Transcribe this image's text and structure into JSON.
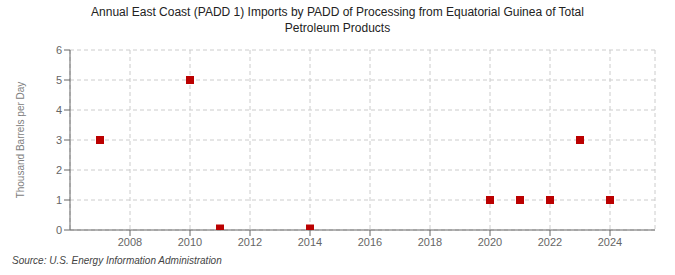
{
  "chart_data": {
    "type": "scatter",
    "title": "Annual East Coast (PADD 1) Imports by PADD of Processing from Equatorial Guinea of Total\nPetroleum Products",
    "ylabel": "Thousand Barrels per Day",
    "source": "Source: U.S. Energy Information Administration",
    "x": [
      2007,
      2010,
      2011,
      2014,
      2020,
      2021,
      2022,
      2023,
      2024
    ],
    "values": [
      3,
      5,
      0.05,
      0.05,
      1,
      1,
      1,
      3,
      1
    ],
    "color": "#bb0000",
    "marker": "square",
    "xlim": [
      2006.0,
      2025.5
    ],
    "ylim": [
      0,
      6
    ],
    "xticks": [
      2008,
      2010,
      2012,
      2014,
      2016,
      2018,
      2020,
      2022,
      2024
    ],
    "yticks": [
      0,
      1,
      2,
      3,
      4,
      5,
      6
    ],
    "grid": true
  }
}
